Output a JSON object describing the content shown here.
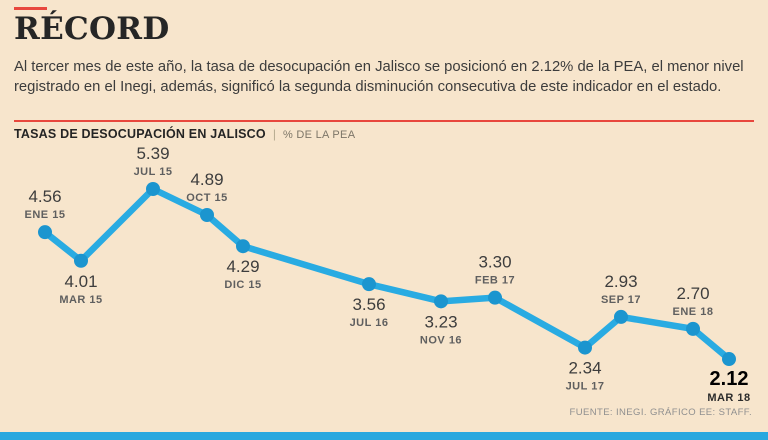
{
  "page": {
    "title": "RÉCORD",
    "intro": "Al tercer mes de este año, la tasa de desocupación en Jalisco se posicionó en 2.12% de la PEA, el menor nivel registrado en el Inegi, además, significó la segunda disminución consecutiva de este indicador en el estado.",
    "source": "FUENTE: INEGI. GRÁFICO EE: STAFF."
  },
  "chart_header": {
    "title": "TASAS DE DESOCUPACIÓN EN JALISCO",
    "separator": "|",
    "unit": "% DE LA PEA"
  },
  "colors": {
    "background": "#f7e5cc",
    "accent_red": "#e8473d",
    "line_blue": "#29abe2",
    "dot_blue": "#1b95cf",
    "bottom_bar": "#29a8df",
    "text_dark": "#3d3d3d",
    "text_gray": "#5f5f5f"
  },
  "chart_data": {
    "type": "line",
    "title": "TASAS DE DESOCUPACIÓN EN JALISCO",
    "unit": "% DE LA PEA",
    "x_note": "x = months elapsed since ENE 15",
    "ylim": [
      2.12,
      5.39
    ],
    "grid": false,
    "legend": "none",
    "points": [
      {
        "x": 0,
        "date": "ENE 15",
        "value": 4.56,
        "label_pos": "above"
      },
      {
        "x": 2,
        "date": "MAR 15",
        "value": 4.01,
        "label_pos": "below"
      },
      {
        "x": 6,
        "date": "JUL 15",
        "value": 5.39,
        "label_pos": "above"
      },
      {
        "x": 9,
        "date": "OCT 15",
        "value": 4.89,
        "label_pos": "above"
      },
      {
        "x": 11,
        "date": "DIC 15",
        "value": 4.29,
        "label_pos": "below"
      },
      {
        "x": 18,
        "date": "JUL 16",
        "value": 3.56,
        "label_pos": "below"
      },
      {
        "x": 22,
        "date": "NOV 16",
        "value": 3.23,
        "label_pos": "below"
      },
      {
        "x": 25,
        "date": "FEB 17",
        "value": 3.3,
        "label_pos": "above"
      },
      {
        "x": 30,
        "date": "JUL 17",
        "value": 2.34,
        "label_pos": "below"
      },
      {
        "x": 32,
        "date": "SEP 17",
        "value": 2.93,
        "label_pos": "above"
      },
      {
        "x": 36,
        "date": "ENE 18",
        "value": 2.7,
        "label_pos": "above"
      },
      {
        "x": 38,
        "date": "MAR 18",
        "value": 2.12,
        "label_pos": "below",
        "highlight": true
      }
    ]
  }
}
